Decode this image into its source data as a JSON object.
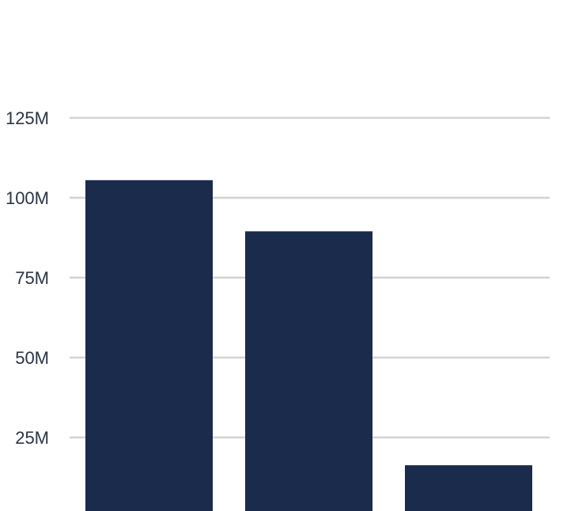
{
  "chart_data": {
    "type": "bar",
    "title": "",
    "xlabel": "",
    "ylabel": "",
    "categories": [
      "",
      "",
      ""
    ],
    "series": [
      {
        "values": [
          105500000,
          89500000,
          16300000
        ]
      }
    ],
    "y_ticks": [
      {
        "value": 25000000,
        "label": "25M"
      },
      {
        "value": 50000000,
        "label": "50M"
      },
      {
        "value": 75000000,
        "label": "75M"
      },
      {
        "value": 100000000,
        "label": "100M"
      },
      {
        "value": 125000000,
        "label": "125M"
      }
    ],
    "ylim": [
      0,
      160000000
    ],
    "grid": true,
    "colors": {
      "bar": "#1a2b4c",
      "grid": "#d3d3d3",
      "tick_text": "#2b3445"
    }
  }
}
